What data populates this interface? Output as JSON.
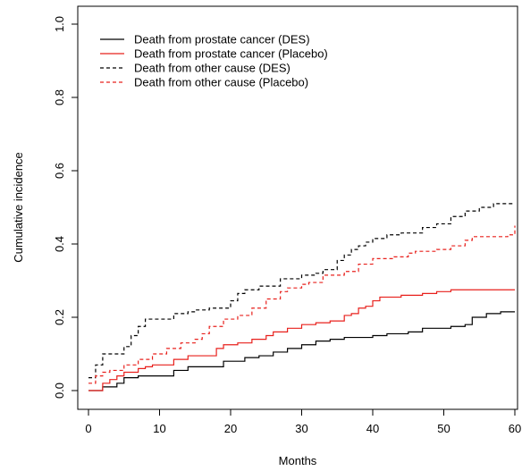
{
  "chart_data": {
    "type": "line",
    "title": "",
    "xlabel": "Months",
    "ylabel": "Cumulative incidence",
    "xlim": [
      0,
      60
    ],
    "ylim": [
      0,
      1
    ],
    "x_ticks": [
      "0",
      "10",
      "20",
      "30",
      "40",
      "50",
      "60"
    ],
    "y_ticks": [
      "0.0",
      "0.2",
      "0.4",
      "0.6",
      "0.8",
      "1.0"
    ],
    "grid": false,
    "legend_position": "top-left",
    "step": true,
    "series": [
      {
        "name": "Death from prostate cancer (DES)",
        "color": "#000000",
        "dash": "solid",
        "x": [
          0,
          2,
          4,
          5,
          7,
          12,
          14,
          19,
          22,
          24,
          26,
          28,
          30,
          32,
          34,
          36,
          40,
          42,
          45,
          47,
          51,
          53,
          54,
          56,
          58,
          60
        ],
        "y": [
          0,
          0.01,
          0.02,
          0.035,
          0.04,
          0.055,
          0.065,
          0.08,
          0.09,
          0.095,
          0.105,
          0.115,
          0.125,
          0.135,
          0.14,
          0.145,
          0.15,
          0.155,
          0.16,
          0.17,
          0.175,
          0.18,
          0.2,
          0.21,
          0.215,
          0.215
        ]
      },
      {
        "name": "Death from prostate cancer (Placebo)",
        "color": "#e8201c",
        "dash": "solid",
        "x": [
          0,
          2,
          3,
          4,
          5,
          7,
          8,
          9,
          12,
          14,
          18,
          19,
          21,
          23,
          25,
          26,
          28,
          30,
          32,
          34,
          36,
          37,
          38,
          39,
          40,
          41,
          44,
          47,
          49,
          51,
          60
        ],
        "y": [
          0,
          0.02,
          0.03,
          0.04,
          0.05,
          0.06,
          0.065,
          0.07,
          0.085,
          0.095,
          0.115,
          0.125,
          0.13,
          0.14,
          0.15,
          0.16,
          0.17,
          0.18,
          0.185,
          0.19,
          0.205,
          0.21,
          0.225,
          0.23,
          0.245,
          0.255,
          0.26,
          0.265,
          0.27,
          0.275,
          0.275
        ]
      },
      {
        "name": "Death from other cause (DES)",
        "color": "#000000",
        "dash": "dashed",
        "x": [
          0,
          1,
          2,
          5,
          6,
          7,
          8,
          12,
          14,
          15,
          17,
          20,
          21,
          22,
          24,
          27,
          30,
          32,
          33,
          35,
          36,
          37,
          38,
          39,
          40,
          42,
          44,
          47,
          49,
          51,
          53,
          55,
          57,
          60
        ],
        "y": [
          0.035,
          0.07,
          0.1,
          0.12,
          0.15,
          0.175,
          0.195,
          0.21,
          0.215,
          0.22,
          0.225,
          0.245,
          0.265,
          0.275,
          0.285,
          0.305,
          0.315,
          0.32,
          0.33,
          0.355,
          0.37,
          0.385,
          0.395,
          0.405,
          0.415,
          0.425,
          0.43,
          0.445,
          0.455,
          0.475,
          0.49,
          0.5,
          0.51,
          0.51
        ]
      },
      {
        "name": "Death from other cause (Placebo)",
        "color": "#e8201c",
        "dash": "dashed",
        "x": [
          0,
          1,
          2,
          3,
          5,
          7,
          9,
          11,
          13,
          15,
          16,
          17,
          19,
          21,
          23,
          25,
          27,
          28,
          30,
          31,
          33,
          36,
          38,
          40,
          43,
          45,
          46,
          49,
          51,
          53,
          54,
          59,
          60
        ],
        "y": [
          0.02,
          0.04,
          0.05,
          0.055,
          0.07,
          0.085,
          0.1,
          0.115,
          0.13,
          0.14,
          0.155,
          0.175,
          0.195,
          0.205,
          0.225,
          0.25,
          0.27,
          0.28,
          0.29,
          0.295,
          0.315,
          0.325,
          0.345,
          0.36,
          0.365,
          0.375,
          0.38,
          0.385,
          0.395,
          0.41,
          0.42,
          0.425,
          0.45
        ]
      }
    ]
  }
}
